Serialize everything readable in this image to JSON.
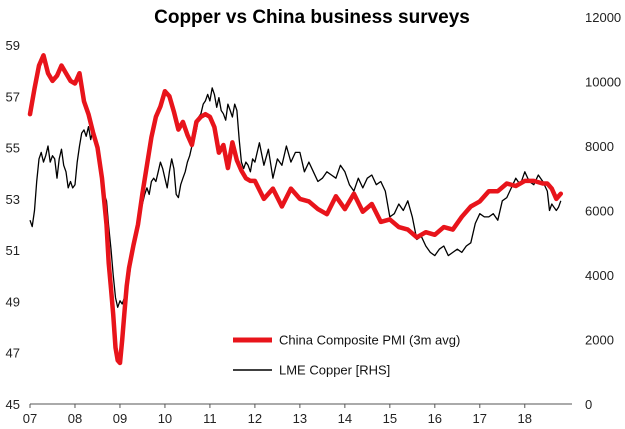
{
  "chart_data": {
    "type": "line",
    "title": "Copper vs China business surveys",
    "x_tick_labels": [
      "07",
      "08",
      "09",
      "10",
      "11",
      "12",
      "13",
      "14",
      "15",
      "16",
      "17",
      "18"
    ],
    "y_left": {
      "min": 45,
      "max": 59,
      "ticks": [
        "45",
        "47",
        "49",
        "51",
        "53",
        "55",
        "57",
        "59"
      ]
    },
    "y_right": {
      "min": 0,
      "max": 12000,
      "ticks": [
        "0",
        "2000",
        "4000",
        "6000",
        "8000",
        "10000",
        "12000"
      ]
    },
    "colors": {
      "pmi": "#e8141b",
      "copper": "#000000"
    },
    "series": [
      {
        "name": "China Composite PMI (3m avg)",
        "axis": "left",
        "x": [
          2007.0,
          2007.1,
          2007.2,
          2007.3,
          2007.4,
          2007.5,
          2007.6,
          2007.7,
          2007.8,
          2007.9,
          2008.0,
          2008.1,
          2008.2,
          2008.3,
          2008.4,
          2008.5,
          2008.6,
          2008.7,
          2008.75,
          2008.8,
          2008.85,
          2008.9,
          2008.95,
          2009.0,
          2009.05,
          2009.1,
          2009.15,
          2009.2,
          2009.3,
          2009.4,
          2009.5,
          2009.6,
          2009.7,
          2009.8,
          2009.9,
          2010.0,
          2010.1,
          2010.2,
          2010.3,
          2010.4,
          2010.5,
          2010.6,
          2010.7,
          2010.8,
          2010.9,
          2011.0,
          2011.1,
          2011.2,
          2011.3,
          2011.4,
          2011.5,
          2011.6,
          2011.7,
          2011.8,
          2011.9,
          2012.0,
          2012.2,
          2012.4,
          2012.6,
          2012.8,
          2013.0,
          2013.2,
          2013.4,
          2013.6,
          2013.8,
          2014.0,
          2014.2,
          2014.4,
          2014.6,
          2014.8,
          2015.0,
          2015.2,
          2015.4,
          2015.6,
          2015.8,
          2016.0,
          2016.2,
          2016.4,
          2016.6,
          2016.8,
          2017.0,
          2017.2,
          2017.4,
          2017.6,
          2017.8,
          2018.0,
          2018.2,
          2018.4,
          2018.5,
          2018.6,
          2018.7,
          2018.8
        ],
        "values": [
          56.3,
          57.3,
          58.2,
          58.6,
          57.9,
          57.6,
          57.8,
          58.2,
          57.9,
          57.6,
          57.5,
          57.9,
          56.8,
          56.3,
          55.6,
          55.0,
          53.8,
          52.0,
          50.5,
          49.5,
          48.5,
          47.2,
          46.7,
          46.6,
          47.5,
          48.6,
          49.6,
          50.3,
          51.2,
          52.0,
          53.2,
          54.3,
          55.4,
          56.2,
          56.6,
          57.2,
          57.0,
          56.4,
          55.7,
          56.0,
          55.5,
          55.1,
          56.0,
          56.2,
          56.3,
          56.2,
          55.8,
          54.8,
          55.1,
          54.2,
          55.2,
          54.5,
          54.1,
          53.8,
          53.7,
          53.7,
          53.0,
          53.4,
          52.7,
          53.4,
          53.0,
          52.9,
          52.6,
          52.4,
          53.1,
          52.6,
          53.2,
          52.5,
          52.8,
          52.1,
          52.2,
          51.9,
          51.8,
          51.5,
          51.7,
          51.6,
          51.9,
          51.8,
          52.3,
          52.7,
          52.9,
          53.3,
          53.3,
          53.6,
          53.5,
          53.7,
          53.7,
          53.6,
          53.6,
          53.4,
          53.0,
          53.2
        ]
      },
      {
        "name": "LME Copper [RHS]",
        "axis": "right",
        "x": [
          2007.0,
          2007.05,
          2007.1,
          2007.15,
          2007.2,
          2007.25,
          2007.3,
          2007.35,
          2007.4,
          2007.45,
          2007.5,
          2007.55,
          2007.6,
          2007.65,
          2007.7,
          2007.75,
          2007.8,
          2007.85,
          2007.9,
          2007.95,
          2008.0,
          2008.05,
          2008.1,
          2008.15,
          2008.2,
          2008.25,
          2008.3,
          2008.35,
          2008.4,
          2008.45,
          2008.5,
          2008.55,
          2008.6,
          2008.65,
          2008.7,
          2008.75,
          2008.8,
          2008.85,
          2008.9,
          2008.95,
          2009.0,
          2009.05,
          2009.1,
          2009.15,
          2009.2,
          2009.25,
          2009.3,
          2009.35,
          2009.4,
          2009.45,
          2009.5,
          2009.55,
          2009.6,
          2009.65,
          2009.7,
          2009.75,
          2009.8,
          2009.85,
          2009.9,
          2009.95,
          2010.0,
          2010.05,
          2010.1,
          2010.15,
          2010.2,
          2010.25,
          2010.3,
          2010.35,
          2010.4,
          2010.45,
          2010.5,
          2010.55,
          2010.6,
          2010.65,
          2010.7,
          2010.75,
          2010.8,
          2010.85,
          2010.9,
          2010.95,
          2011.0,
          2011.05,
          2011.1,
          2011.15,
          2011.2,
          2011.25,
          2011.3,
          2011.35,
          2011.4,
          2011.45,
          2011.5,
          2011.55,
          2011.6,
          2011.65,
          2011.7,
          2011.75,
          2011.8,
          2011.85,
          2011.9,
          2011.95,
          2012.0,
          2012.1,
          2012.2,
          2012.3,
          2012.4,
          2012.5,
          2012.6,
          2012.7,
          2012.8,
          2012.9,
          2013.0,
          2013.1,
          2013.2,
          2013.3,
          2013.4,
          2013.5,
          2013.6,
          2013.7,
          2013.8,
          2013.9,
          2014.0,
          2014.1,
          2014.2,
          2014.3,
          2014.4,
          2014.5,
          2014.6,
          2014.7,
          2014.8,
          2014.9,
          2015.0,
          2015.1,
          2015.2,
          2015.3,
          2015.4,
          2015.5,
          2015.6,
          2015.7,
          2015.8,
          2015.9,
          2016.0,
          2016.1,
          2016.2,
          2016.3,
          2016.4,
          2016.5,
          2016.6,
          2016.7,
          2016.8,
          2016.9,
          2017.0,
          2017.1,
          2017.2,
          2017.3,
          2017.4,
          2017.5,
          2017.6,
          2017.7,
          2017.8,
          2017.9,
          2018.0,
          2018.1,
          2018.2,
          2018.3,
          2018.4,
          2018.5,
          2018.55,
          2018.6,
          2018.65,
          2018.7,
          2018.75,
          2018.8
        ],
        "values": [
          5700,
          5500,
          6000,
          6900,
          7600,
          7800,
          7500,
          7700,
          8000,
          7500,
          7700,
          7600,
          7000,
          7600,
          7900,
          7400,
          7200,
          6700,
          6900,
          6700,
          6800,
          7500,
          8000,
          8400,
          8500,
          8300,
          8600,
          8200,
          8500,
          8300,
          7800,
          7500,
          7000,
          6500,
          6300,
          5500,
          4800,
          4000,
          3300,
          3000,
          3200,
          3100,
          3300,
          3600,
          3900,
          4400,
          4800,
          5200,
          5600,
          5900,
          6200,
          6500,
          6700,
          6500,
          6900,
          7000,
          6900,
          7200,
          7500,
          7300,
          7000,
          6700,
          7200,
          7600,
          7300,
          6500,
          6400,
          6800,
          7000,
          7200,
          7500,
          7700,
          8000,
          8200,
          8500,
          8900,
          9000,
          9300,
          9400,
          9600,
          9400,
          9800,
          9600,
          9200,
          9500,
          9100,
          9000,
          8800,
          9300,
          9100,
          8900,
          9300,
          9100,
          8200,
          7500,
          7300,
          7500,
          7400,
          7200,
          7600,
          7500,
          8100,
          7400,
          7900,
          7000,
          7600,
          7400,
          8000,
          7500,
          7800,
          7800,
          7200,
          7500,
          7200,
          6900,
          7000,
          7200,
          7100,
          7000,
          7400,
          7200,
          6800,
          6600,
          7000,
          6700,
          7000,
          7100,
          6800,
          6900,
          6600,
          5800,
          5900,
          6200,
          6000,
          6300,
          5800,
          5100,
          5200,
          4900,
          4700,
          4600,
          4800,
          4900,
          4600,
          4700,
          4800,
          4700,
          4900,
          5000,
          5600,
          5900,
          5800,
          5800,
          5900,
          5700,
          6300,
          6400,
          6700,
          7000,
          6800,
          7200,
          6900,
          6800,
          7100,
          6900,
          6600,
          6000,
          6200,
          6100,
          6000,
          6100,
          6300
        ]
      }
    ],
    "legend": {
      "position": "bottom-right"
    },
    "grid": false
  }
}
